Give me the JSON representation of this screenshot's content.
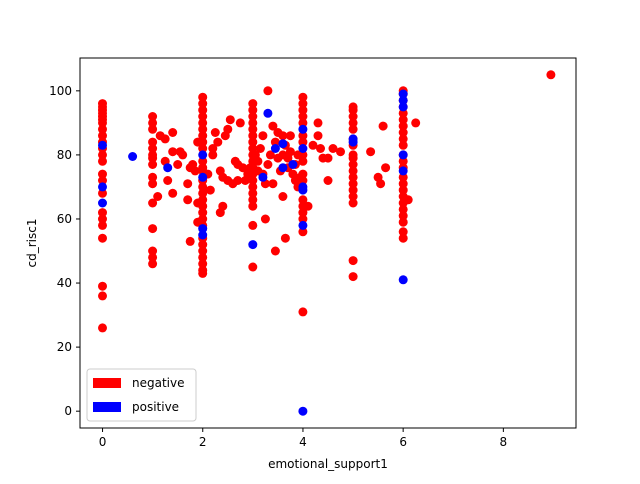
{
  "chart_data": {
    "type": "scatter",
    "title": "",
    "xlabel": "emotional_support1",
    "ylabel": "cd_risc1",
    "xlim": [
      -0.45,
      9.45
    ],
    "ylim": [
      -5.25,
      110.25
    ],
    "xticks": [
      0,
      2,
      4,
      6,
      8
    ],
    "yticks": [
      0,
      20,
      40,
      60,
      80,
      100
    ],
    "grid": false,
    "legend_position": "lower-left",
    "legend": [
      {
        "label": "negative",
        "color": "#ff0000"
      },
      {
        "label": "positive",
        "color": "#0000ff"
      }
    ],
    "series": [
      {
        "name": "negative",
        "color": "#ff0000",
        "points": [
          [
            0,
            96
          ],
          [
            0,
            95
          ],
          [
            0,
            94
          ],
          [
            0,
            93
          ],
          [
            0,
            92
          ],
          [
            0,
            91
          ],
          [
            0,
            90
          ],
          [
            0,
            88
          ],
          [
            0,
            86
          ],
          [
            0,
            84
          ],
          [
            0,
            82
          ],
          [
            0,
            80
          ],
          [
            0,
            78
          ],
          [
            0,
            74
          ],
          [
            0,
            72
          ],
          [
            0,
            68
          ],
          [
            0,
            62
          ],
          [
            0,
            60
          ],
          [
            0,
            58
          ],
          [
            0,
            54
          ],
          [
            0,
            39
          ],
          [
            0,
            36
          ],
          [
            0,
            26
          ],
          [
            1,
            92
          ],
          [
            1,
            90
          ],
          [
            1,
            88
          ],
          [
            1,
            84
          ],
          [
            1,
            82
          ],
          [
            1,
            80
          ],
          [
            1,
            79
          ],
          [
            1,
            77
          ],
          [
            1,
            73
          ],
          [
            1,
            71
          ],
          [
            1,
            65
          ],
          [
            1,
            57
          ],
          [
            1,
            50
          ],
          [
            1,
            48
          ],
          [
            1,
            46
          ],
          [
            1.1,
            67
          ],
          [
            1.15,
            86
          ],
          [
            1.25,
            85
          ],
          [
            1.25,
            78
          ],
          [
            1.3,
            72
          ],
          [
            1.4,
            81
          ],
          [
            1.4,
            87
          ],
          [
            1.4,
            68
          ],
          [
            1.5,
            77
          ],
          [
            1.55,
            81
          ],
          [
            1.6,
            80
          ],
          [
            1.7,
            66
          ],
          [
            1.7,
            71
          ],
          [
            1.75,
            76
          ],
          [
            1.75,
            53
          ],
          [
            1.8,
            77
          ],
          [
            1.9,
            84
          ],
          [
            1.85,
            75
          ],
          [
            1.9,
            59
          ],
          [
            1.9,
            65
          ],
          [
            2,
            98
          ],
          [
            2,
            96
          ],
          [
            2,
            94
          ],
          [
            2,
            92
          ],
          [
            2,
            90
          ],
          [
            2,
            88
          ],
          [
            2,
            86
          ],
          [
            2,
            84
          ],
          [
            2,
            82
          ],
          [
            2,
            78
          ],
          [
            2,
            76
          ],
          [
            2,
            75
          ],
          [
            2,
            72
          ],
          [
            2,
            70
          ],
          [
            2,
            68
          ],
          [
            2,
            66
          ],
          [
            2,
            64
          ],
          [
            2,
            62
          ],
          [
            2,
            60
          ],
          [
            2,
            58
          ],
          [
            2,
            54
          ],
          [
            2,
            52
          ],
          [
            2,
            50
          ],
          [
            2,
            48
          ],
          [
            2,
            46
          ],
          [
            2,
            44
          ],
          [
            2,
            43
          ],
          [
            2.1,
            74
          ],
          [
            2.15,
            69
          ],
          [
            2.2,
            82
          ],
          [
            2.2,
            80
          ],
          [
            2.25,
            87
          ],
          [
            2.3,
            84
          ],
          [
            2.35,
            75
          ],
          [
            2.35,
            62
          ],
          [
            2.4,
            64
          ],
          [
            2.4,
            73
          ],
          [
            2.45,
            86
          ],
          [
            2.5,
            88
          ],
          [
            2.5,
            72
          ],
          [
            2.55,
            91
          ],
          [
            2.6,
            71
          ],
          [
            2.65,
            78
          ],
          [
            2.7,
            77
          ],
          [
            2.7,
            72
          ],
          [
            2.75,
            90
          ],
          [
            2.8,
            76
          ],
          [
            2.85,
            72
          ],
          [
            2.9,
            74
          ],
          [
            2.95,
            76
          ],
          [
            3,
            96
          ],
          [
            3,
            94
          ],
          [
            3,
            92
          ],
          [
            3,
            90
          ],
          [
            3,
            88
          ],
          [
            3,
            86
          ],
          [
            3,
            84
          ],
          [
            3,
            82
          ],
          [
            3,
            80
          ],
          [
            3,
            78
          ],
          [
            3,
            76
          ],
          [
            3,
            74
          ],
          [
            3,
            72
          ],
          [
            3,
            70
          ],
          [
            3,
            68
          ],
          [
            3,
            66
          ],
          [
            3,
            64
          ],
          [
            3,
            58
          ],
          [
            3,
            45
          ],
          [
            3.05,
            80
          ],
          [
            3.1,
            78
          ],
          [
            3.1,
            75
          ],
          [
            3.15,
            82
          ],
          [
            3.2,
            74
          ],
          [
            3.2,
            86
          ],
          [
            3.25,
            60
          ],
          [
            3.25,
            71
          ],
          [
            3.3,
            100
          ],
          [
            3.3,
            77
          ],
          [
            3.35,
            80
          ],
          [
            3.4,
            71
          ],
          [
            3.4,
            89
          ],
          [
            3.45,
            84
          ],
          [
            3.45,
            50
          ],
          [
            3.5,
            87
          ],
          [
            3.5,
            79
          ],
          [
            3.55,
            75
          ],
          [
            3.6,
            86
          ],
          [
            3.6,
            80
          ],
          [
            3.6,
            67
          ],
          [
            3.65,
            83
          ],
          [
            3.65,
            54
          ],
          [
            3.7,
            79
          ],
          [
            3.7,
            76
          ],
          [
            3.75,
            81
          ],
          [
            3.75,
            86
          ],
          [
            3.8,
            74
          ],
          [
            3.85,
            77
          ],
          [
            3.85,
            72
          ],
          [
            3.9,
            80
          ],
          [
            3.9,
            70
          ],
          [
            3.95,
            73
          ],
          [
            4,
            98
          ],
          [
            4,
            96
          ],
          [
            4,
            94
          ],
          [
            4,
            92
          ],
          [
            4,
            90
          ],
          [
            4,
            86
          ],
          [
            4,
            84
          ],
          [
            4,
            80
          ],
          [
            4,
            78
          ],
          [
            4,
            74
          ],
          [
            4,
            72
          ],
          [
            4,
            66
          ],
          [
            4,
            64
          ],
          [
            4,
            62
          ],
          [
            4,
            60
          ],
          [
            4,
            56
          ],
          [
            4,
            31
          ],
          [
            4.1,
            64
          ],
          [
            4.2,
            83
          ],
          [
            4.3,
            86
          ],
          [
            4.3,
            90
          ],
          [
            4.35,
            82
          ],
          [
            4.4,
            79
          ],
          [
            4.5,
            79
          ],
          [
            4.5,
            72
          ],
          [
            4.6,
            82
          ],
          [
            4.75,
            81
          ],
          [
            5,
            95
          ],
          [
            5,
            94
          ],
          [
            5,
            92
          ],
          [
            5,
            90
          ],
          [
            5,
            88
          ],
          [
            5,
            85
          ],
          [
            5,
            83
          ],
          [
            5,
            80
          ],
          [
            5,
            79
          ],
          [
            5,
            77
          ],
          [
            5,
            75
          ],
          [
            5,
            73
          ],
          [
            5,
            71
          ],
          [
            5,
            69
          ],
          [
            5,
            67
          ],
          [
            5,
            65
          ],
          [
            5,
            47
          ],
          [
            5,
            42
          ],
          [
            5.35,
            81
          ],
          [
            5.5,
            73
          ],
          [
            5.55,
            71
          ],
          [
            5.6,
            89
          ],
          [
            5.65,
            76
          ],
          [
            6,
            100
          ],
          [
            6,
            99
          ],
          [
            6,
            97
          ],
          [
            6,
            95
          ],
          [
            6,
            93
          ],
          [
            6,
            91
          ],
          [
            6,
            89
          ],
          [
            6,
            87
          ],
          [
            6,
            85
          ],
          [
            6,
            83
          ],
          [
            6,
            80
          ],
          [
            6,
            78
          ],
          [
            6,
            76
          ],
          [
            6,
            73
          ],
          [
            6,
            71
          ],
          [
            6,
            69
          ],
          [
            6,
            67
          ],
          [
            6,
            65
          ],
          [
            6,
            63
          ],
          [
            6,
            61
          ],
          [
            6,
            59
          ],
          [
            6,
            56
          ],
          [
            6,
            54
          ],
          [
            6.1,
            66
          ],
          [
            6.25,
            90
          ],
          [
            8.95,
            105
          ]
        ]
      },
      {
        "name": "positive",
        "color": "#0000ff",
        "points": [
          [
            0,
            83
          ],
          [
            0,
            70
          ],
          [
            0,
            65
          ],
          [
            0.6,
            79.5
          ],
          [
            1.3,
            76
          ],
          [
            2,
            80
          ],
          [
            2,
            73
          ],
          [
            2,
            57
          ],
          [
            2,
            55
          ],
          [
            3,
            52
          ],
          [
            3.2,
            73
          ],
          [
            3.3,
            93
          ],
          [
            3.45,
            82
          ],
          [
            3.6,
            83.5
          ],
          [
            3.6,
            76
          ],
          [
            3.8,
            77
          ],
          [
            4,
            88
          ],
          [
            4,
            82
          ],
          [
            4,
            70
          ],
          [
            4,
            69
          ],
          [
            4,
            58
          ],
          [
            4,
            0
          ],
          [
            5,
            85
          ],
          [
            5,
            84
          ],
          [
            6,
            99
          ],
          [
            6,
            97
          ],
          [
            6,
            95
          ],
          [
            6,
            80
          ],
          [
            6,
            75
          ],
          [
            6,
            41
          ]
        ]
      }
    ]
  }
}
